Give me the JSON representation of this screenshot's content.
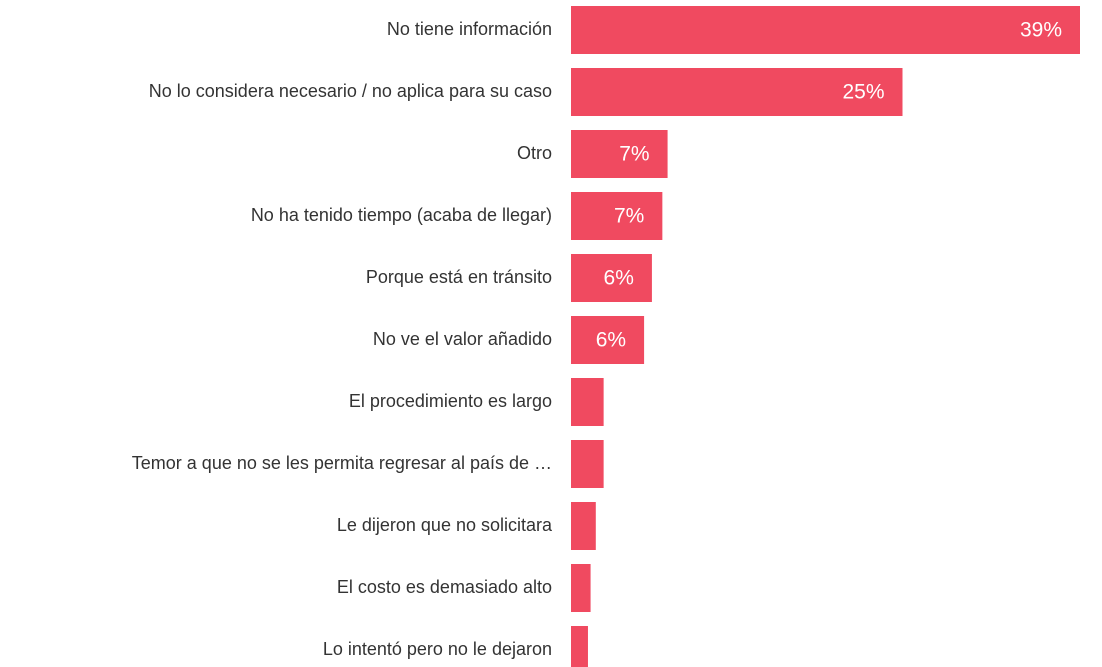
{
  "chart_data": {
    "type": "bar",
    "orientation": "horizontal",
    "categories": [
      "No tiene información",
      "No lo considera necesario / no aplica para su caso",
      "Otro",
      "No ha tenido tiempo (acaba de llegar)",
      "Porque está en tránsito",
      "No ve el valor añadido",
      "El procedimiento es largo",
      "Temor a que no se les permita regresar al país de …",
      "Le dijeron que no solicitara",
      "El costo es demasiado alto",
      "Lo intentó pero no le dejaron"
    ],
    "values": [
      39.0,
      25.4,
      7.4,
      7.0,
      6.2,
      5.6,
      2.5,
      2.5,
      1.9,
      1.5,
      1.3
    ],
    "value_labels": [
      "39%",
      "25%",
      "7%",
      "7%",
      "6%",
      "6%",
      null,
      null,
      null,
      null,
      null
    ],
    "color": "#f04a60",
    "xlim": [
      0,
      39
    ]
  }
}
